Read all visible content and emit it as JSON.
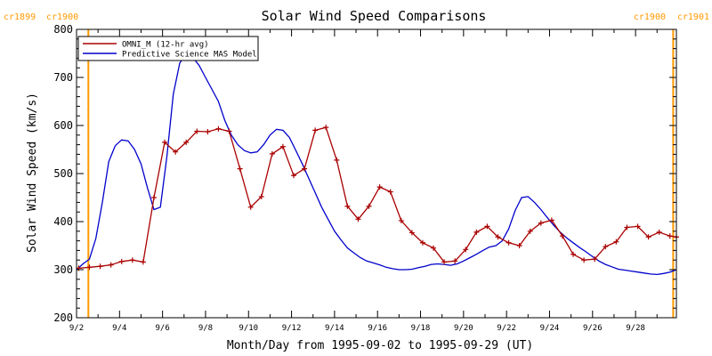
{
  "chart_data": {
    "type": "line",
    "title": "Solar Wind Speed Comparisons",
    "xlabel": "Month/Day from 1995-09-02 to 1995-09-29 (UT)",
    "ylabel": "Solar Wind Speed (km/s)",
    "xlim": [
      0,
      27.9
    ],
    "ylim": [
      200,
      800
    ],
    "x_tick_labels": [
      {
        "x": 0,
        "label": "9/2"
      },
      {
        "x": 2,
        "label": "9/4"
      },
      {
        "x": 4,
        "label": "9/6"
      },
      {
        "x": 6,
        "label": "9/8"
      },
      {
        "x": 8,
        "label": "9/10"
      },
      {
        "x": 10,
        "label": "9/12"
      },
      {
        "x": 12,
        "label": "9/14"
      },
      {
        "x": 14,
        "label": "9/16"
      },
      {
        "x": 16,
        "label": "9/18"
      },
      {
        "x": 18,
        "label": "9/20"
      },
      {
        "x": 20,
        "label": "9/22"
      },
      {
        "x": 22,
        "label": "9/24"
      },
      {
        "x": 24,
        "label": "9/26"
      },
      {
        "x": 26,
        "label": "9/28"
      }
    ],
    "y_ticks": [
      200,
      300,
      400,
      500,
      600,
      700,
      800
    ],
    "grid": false,
    "legend_position": "top-left",
    "rotation_markers": [
      {
        "x": 0.55,
        "left_label": "cr1899",
        "right_label": "cr1900",
        "side": "left"
      },
      {
        "x": 27.75,
        "left_label": "cr1900",
        "right_label": "cr1901",
        "side": "right"
      }
    ],
    "marker_color": "#ff9900",
    "series": [
      {
        "name": "OMNI_M (12-hr avg)",
        "color": "#aa0000",
        "marker": "plus",
        "x": [
          0.1,
          0.6,
          1.1,
          1.6,
          2.1,
          2.6,
          3.1,
          3.6,
          4.1,
          4.6,
          5.1,
          5.6,
          6.1,
          6.6,
          7.1,
          7.6,
          8.1,
          8.6,
          9.1,
          9.6,
          10.1,
          10.6,
          11.1,
          11.6,
          12.1,
          12.6,
          13.1,
          13.6,
          14.1,
          14.6,
          15.1,
          15.6,
          16.1,
          16.6,
          17.1,
          17.6,
          18.1,
          18.6,
          19.1,
          19.6,
          20.1,
          20.6,
          21.1,
          21.6,
          22.1,
          22.6,
          23.1,
          23.6,
          24.1,
          24.6,
          25.1,
          25.6,
          26.1,
          26.6,
          27.1,
          27.6,
          27.9
        ],
        "values": [
          303,
          305,
          307,
          310,
          317,
          320,
          316,
          450,
          565,
          545,
          565,
          588,
          587,
          593,
          588,
          510,
          430,
          452,
          541,
          556,
          496,
          510,
          590,
          596,
          528,
          432,
          405,
          432,
          472,
          462,
          402,
          377,
          356,
          345,
          316,
          318,
          342,
          378,
          390,
          368,
          356,
          350,
          380,
          397,
          403,
          370,
          332,
          320,
          322,
          348,
          358,
          388,
          390,
          368,
          378,
          370,
          368
        ]
      },
      {
        "name": "Predictive Science MAS Model",
        "color": "#0000cc",
        "marker": "none",
        "x": [
          0,
          0.3,
          0.6,
          0.9,
          1.2,
          1.5,
          1.8,
          2.1,
          2.4,
          2.7,
          3.0,
          3.3,
          3.6,
          3.9,
          4.2,
          4.5,
          4.8,
          5.1,
          5.4,
          5.7,
          6.0,
          6.3,
          6.6,
          6.9,
          7.2,
          7.5,
          7.8,
          8.1,
          8.4,
          8.7,
          9.0,
          9.3,
          9.6,
          9.9,
          10.2,
          10.5,
          10.8,
          11.1,
          11.4,
          11.7,
          12.0,
          12.3,
          12.6,
          12.9,
          13.2,
          13.5,
          13.8,
          14.1,
          14.4,
          14.7,
          15.0,
          15.3,
          15.6,
          15.9,
          16.2,
          16.5,
          16.8,
          17.1,
          17.4,
          17.7,
          18.0,
          18.3,
          18.6,
          18.9,
          19.2,
          19.5,
          19.8,
          20.1,
          20.4,
          20.7,
          21.0,
          21.3,
          21.6,
          21.9,
          22.2,
          22.5,
          22.8,
          23.1,
          23.4,
          23.7,
          24.0,
          24.3,
          24.6,
          24.9,
          25.2,
          25.5,
          25.8,
          26.1,
          26.4,
          26.7,
          27.0,
          27.3,
          27.6,
          27.9
        ],
        "values": [
          300,
          312,
          322,
          365,
          440,
          525,
          558,
          570,
          568,
          550,
          520,
          470,
          425,
          430,
          535,
          665,
          730,
          748,
          742,
          725,
          700,
          675,
          650,
          610,
          580,
          560,
          548,
          543,
          545,
          560,
          580,
          592,
          590,
          575,
          548,
          520,
          490,
          460,
          430,
          405,
          380,
          362,
          345,
          335,
          325,
          318,
          314,
          310,
          305,
          302,
          300,
          300,
          301,
          304,
          307,
          311,
          312,
          311,
          309,
          312,
          318,
          325,
          332,
          340,
          347,
          350,
          360,
          385,
          423,
          450,
          452,
          440,
          425,
          408,
          392,
          378,
          366,
          356,
          346,
          337,
          327,
          318,
          311,
          306,
          301,
          299,
          297,
          295,
          293,
          291,
          290,
          292,
          295,
          300
        ]
      }
    ]
  }
}
